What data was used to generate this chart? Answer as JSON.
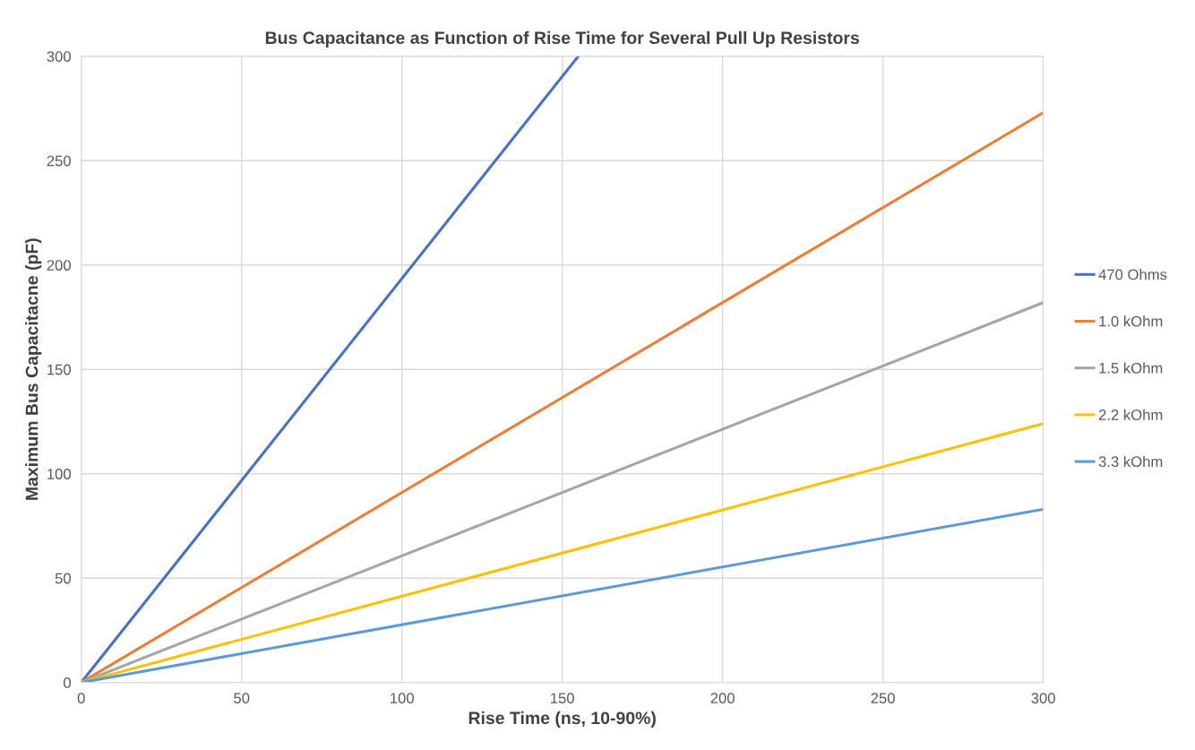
{
  "chart_data": {
    "type": "line",
    "title": "Bus Capacitance as Function of Rise Time for Several Pull Up Resistors",
    "xlabel": "Rise Time (ns, 10-90%)",
    "ylabel": "Maximum Bus Capacitacne (pF)",
    "xlim": [
      0,
      300
    ],
    "ylim": [
      0,
      300
    ],
    "xticks": [
      0,
      50,
      100,
      150,
      200,
      250,
      300
    ],
    "yticks": [
      0,
      50,
      100,
      150,
      200,
      250,
      300
    ],
    "grid": true,
    "legend": "right",
    "marker": "none",
    "line_style": "solid",
    "series": [
      {
        "name": "470 Ohms",
        "color": "#4472c4",
        "x": [
          0,
          155
        ],
        "values": [
          0,
          300
        ]
      },
      {
        "name": "1.0 kOhm",
        "color": "#ed7d31",
        "x": [
          0,
          300
        ],
        "values": [
          0,
          273
        ]
      },
      {
        "name": "1.5 kOhm",
        "color": "#a5a5a5",
        "x": [
          0,
          300
        ],
        "values": [
          0,
          182
        ]
      },
      {
        "name": "2.2 kOhm",
        "color": "#ffc000",
        "x": [
          0,
          300
        ],
        "values": [
          0,
          124
        ]
      },
      {
        "name": "3.3 kOhm",
        "color": "#5b9bd5",
        "x": [
          0,
          300
        ],
        "values": [
          0,
          83
        ]
      }
    ]
  }
}
